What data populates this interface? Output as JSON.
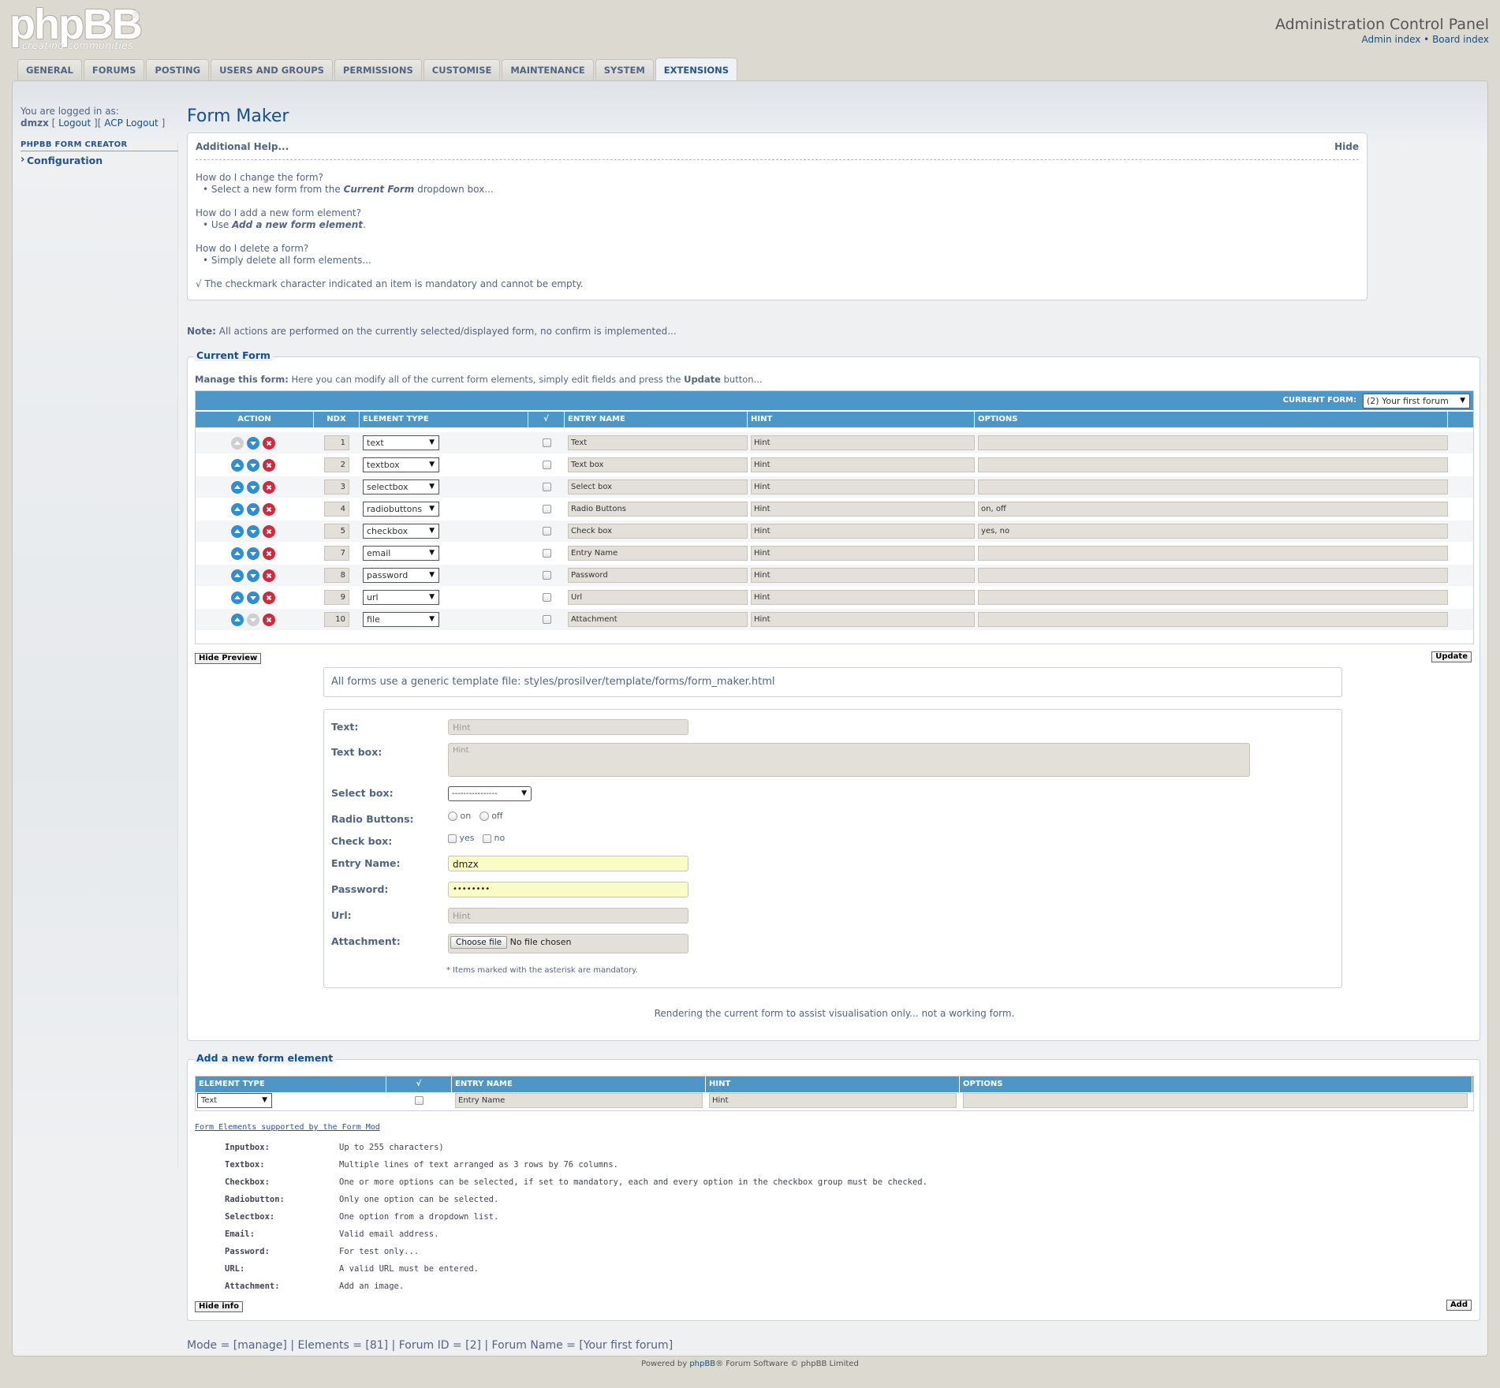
{
  "header": {
    "logo_word": "phpBB",
    "logo_reg": "®",
    "logo_tagline": "creating communities",
    "title": "Administration Control Panel",
    "link_admin_index": "Admin index",
    "link_separator": " • ",
    "link_board_index": "Board index"
  },
  "tabs": [
    {
      "label": "GENERAL"
    },
    {
      "label": "FORUMS"
    },
    {
      "label": "POSTING"
    },
    {
      "label": "USERS AND GROUPS"
    },
    {
      "label": "PERMISSIONS"
    },
    {
      "label": "CUSTOMISE"
    },
    {
      "label": "MAINTENANCE"
    },
    {
      "label": "SYSTEM"
    },
    {
      "label": "EXTENSIONS",
      "active": true
    }
  ],
  "sidebar": {
    "logged_in_label": "You are logged in as:",
    "username": "dmzx",
    "bracket_open": " [ ",
    "logout": "Logout",
    "mid_sep": " ][ ",
    "acp_logout": "ACP Logout",
    "bracket_close": " ]",
    "menu_heading": "PHPBB FORM CREATOR",
    "menu_item": "Configuration"
  },
  "page_title": "Form Maker",
  "help": {
    "heading": "Additional Help...",
    "hide_label": "Hide",
    "q1": "How do I change the form?",
    "a1_pre": "• Select a new form from the ",
    "a1_em": "Current Form",
    "a1_post": " dropdown box...",
    "q2": "How do I add a new form element?",
    "a2_pre": "• Use ",
    "a2_em": "Add a new form element",
    "a2_post": ".",
    "q3": "How do I delete a form?",
    "a3": "• Simply delete all form elements...",
    "check_note": "√ The checkmark character indicated an item is mandatory and cannot be empty."
  },
  "note": {
    "label": "Note:",
    "text": " All actions are performed on the currently selected/displayed form, no confirm is implemented..."
  },
  "current_form": {
    "legend": "Current Form",
    "manage_label": "Manage this form:",
    "manage_text": "  Here you can modify all of the current form elements, simply edit fields and press the ",
    "manage_bold": "Update",
    "manage_tail": " button...",
    "current_form_label": "CURRENT FORM:",
    "current_form_value": "(2) Your first forum",
    "columns": [
      "ACTION",
      "NDX",
      "ELEMENT TYPE",
      "√",
      "ENTRY NAME",
      "HINT",
      "OPTIONS"
    ],
    "rows": [
      {
        "ndx": "1",
        "type": "text",
        "name": "Text",
        "hint": "Hint",
        "options": "",
        "up": false,
        "down": true
      },
      {
        "ndx": "2",
        "type": "textbox",
        "name": "Text box",
        "hint": "Hint",
        "options": "",
        "up": true,
        "down": true
      },
      {
        "ndx": "3",
        "type": "selectbox",
        "name": "Select box",
        "hint": "Hint",
        "options": "",
        "up": true,
        "down": true
      },
      {
        "ndx": "4",
        "type": "radiobuttons",
        "name": "Radio Buttons",
        "hint": "Hint",
        "options": "on, off",
        "up": true,
        "down": true
      },
      {
        "ndx": "5",
        "type": "checkbox",
        "name": "Check box",
        "hint": "Hint",
        "options": "yes, no",
        "up": true,
        "down": true
      },
      {
        "ndx": "7",
        "type": "email",
        "name": "Entry Name",
        "hint": "Hint",
        "options": "",
        "up": true,
        "down": true
      },
      {
        "ndx": "8",
        "type": "password",
        "name": "Password",
        "hint": "Hint",
        "options": "",
        "up": true,
        "down": true
      },
      {
        "ndx": "9",
        "type": "url",
        "name": "Url",
        "hint": "Hint",
        "options": "",
        "up": true,
        "down": true
      },
      {
        "ndx": "10",
        "type": "file",
        "name": "Attachment",
        "hint": "Hint",
        "options": "",
        "up": true,
        "down": false
      }
    ],
    "hide_preview": "Hide Preview",
    "update": "Update"
  },
  "preview": {
    "template_note": "All forms use a generic template file: styles/prosilver/template/forms/form_maker.html",
    "text_label": "Text:",
    "text_placeholder": "Hint",
    "textbox_label": "Text box:",
    "textbox_placeholder": "Hint",
    "selectbox_label": "Select box:",
    "selectbox_value": "----------------",
    "radio_label": "Radio Buttons:",
    "radio_opt1": "on",
    "radio_opt2": "off",
    "check_label": "Check box:",
    "check_opt1": "yes",
    "check_opt2": "no",
    "entry_label": "Entry Name:",
    "entry_value": "dmzx",
    "password_label": "Password:",
    "password_value": "••••••••",
    "url_label": "Url:",
    "url_placeholder": "Hint",
    "attachment_label": "Attachment:",
    "choose_file": "Choose file",
    "no_file": "No file chosen",
    "mandatory_note": "* Items marked with the asterisk are mandatory.",
    "render_note": "Rendering the current form to assist visualisation only... not a working form."
  },
  "add_element": {
    "legend": "Add a new form element",
    "columns": [
      "ELEMENT TYPE",
      "√",
      "ENTRY NAME",
      "HINT",
      "OPTIONS"
    ],
    "type_value": "Text",
    "name_value": "Entry Name",
    "hint_value": "Hint",
    "options_value": "",
    "info_heading": "Form Elements supported by the Form Mod",
    "info": [
      {
        "k": "Inputbox:",
        "v": "Up to 255 characters)"
      },
      {
        "k": "Textbox:",
        "v": "Multiple lines of text arranged as 3 rows by 76 columns."
      },
      {
        "k": "Checkbox:",
        "v": "One or more options can be selected, if set to mandatory, each and every option in the checkbox group must be checked."
      },
      {
        "k": "Radiobutton:",
        "v": "Only one option can be selected."
      },
      {
        "k": "Selectbox:",
        "v": "One option from a dropdown list."
      },
      {
        "k": "Email:",
        "v": "Valid email address."
      },
      {
        "k": "Password:",
        "v": "For test only..."
      },
      {
        "k": "URL:",
        "v": "A valid URL must be entered."
      },
      {
        "k": "Attachment:",
        "v": "Add an image."
      }
    ],
    "hide_info": "Hide info",
    "add": "Add"
  },
  "status_line": "Mode = [manage] | Elements = [81] | Forum ID = [2] | Forum Name = [Your first forum]",
  "footer": {
    "pre": "Powered by ",
    "brand": "phpBB",
    "post": "® Forum Software © phpBB Limited"
  },
  "colors": {
    "background": "#dcd9d1",
    "table_header": "#4c97c8",
    "link": "#105289",
    "title": "#115098",
    "delete_icon": "#d5283d",
    "move_icon": "#2d8fd2"
  },
  "icons": [
    "arrow-up-icon",
    "arrow-down-icon",
    "delete-icon",
    "chevron-down-icon"
  ]
}
